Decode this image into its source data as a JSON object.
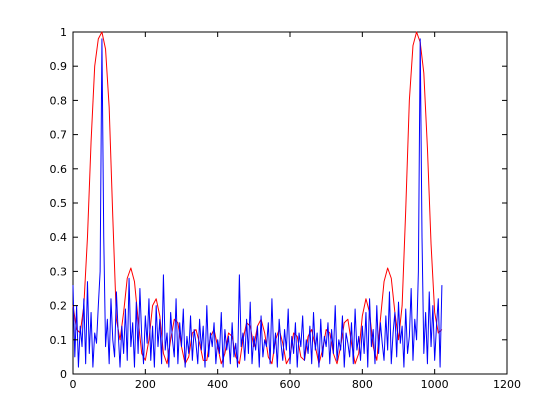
{
  "chart_data": {
    "type": "line",
    "title": "",
    "xlabel": "",
    "ylabel": "",
    "xlim": [
      0,
      1200
    ],
    "ylim": [
      0,
      1
    ],
    "grid": false,
    "x_ticks": [
      "0",
      "200",
      "400",
      "600",
      "800",
      "1000",
      "1200"
    ],
    "y_ticks": [
      "0",
      "0.1",
      "0.2",
      "0.3",
      "0.4",
      "0.5",
      "0.6",
      "0.7",
      "0.8",
      "0.9",
      "1"
    ],
    "series": [
      {
        "color": "#ff0000",
        "x": [
          0,
          10,
          20,
          30,
          40,
          50,
          60,
          70,
          80,
          90,
          100,
          110,
          120,
          130,
          140,
          150,
          160,
          170,
          180,
          190,
          200,
          210,
          220,
          230,
          240,
          250,
          260,
          270,
          280,
          290,
          300,
          310,
          320,
          330,
          340,
          350,
          360,
          370,
          380,
          390,
          400,
          410,
          420,
          430,
          440,
          450,
          460,
          470,
          480,
          490,
          500,
          510,
          520,
          530,
          540,
          550,
          560,
          570,
          580,
          590,
          600,
          610,
          620,
          630,
          640,
          650,
          660,
          670,
          680,
          690,
          700,
          710,
          720,
          730,
          740,
          750,
          760,
          770,
          780,
          790,
          800,
          810,
          820,
          830,
          840,
          850,
          860,
          870,
          880,
          890,
          900,
          910,
          920,
          930,
          940,
          950,
          960,
          970,
          980,
          990,
          1000,
          1010,
          1020
        ],
        "values": [
          0.2,
          0.13,
          0.12,
          0.2,
          0.4,
          0.68,
          0.9,
          0.98,
          1.0,
          0.95,
          0.78,
          0.46,
          0.16,
          0.1,
          0.18,
          0.28,
          0.31,
          0.27,
          0.16,
          0.06,
          0.04,
          0.1,
          0.2,
          0.22,
          0.17,
          0.06,
          0.03,
          0.1,
          0.16,
          0.15,
          0.08,
          0.03,
          0.05,
          0.12,
          0.13,
          0.09,
          0.04,
          0.04,
          0.11,
          0.13,
          0.08,
          0.03,
          0.06,
          0.12,
          0.11,
          0.05,
          0.03,
          0.1,
          0.15,
          0.14,
          0.08,
          0.14,
          0.16,
          0.12,
          0.05,
          0.03,
          0.1,
          0.13,
          0.09,
          0.03,
          0.05,
          0.12,
          0.11,
          0.05,
          0.04,
          0.11,
          0.13,
          0.08,
          0.03,
          0.07,
          0.13,
          0.12,
          0.06,
          0.03,
          0.08,
          0.15,
          0.16,
          0.09,
          0.03,
          0.06,
          0.17,
          0.22,
          0.18,
          0.08,
          0.04,
          0.16,
          0.27,
          0.31,
          0.28,
          0.18,
          0.1,
          0.2,
          0.48,
          0.8,
          0.96,
          1.0,
          0.97,
          0.88,
          0.66,
          0.38,
          0.18,
          0.12,
          0.13
        ]
      },
      {
        "color": "#0000ff",
        "x": [
          0,
          5,
          10,
          15,
          20,
          25,
          30,
          35,
          40,
          45,
          50,
          55,
          60,
          65,
          70,
          75,
          80,
          85,
          90,
          95,
          100,
          105,
          110,
          115,
          120,
          125,
          130,
          135,
          140,
          145,
          150,
          155,
          160,
          165,
          170,
          175,
          180,
          185,
          190,
          195,
          200,
          205,
          210,
          215,
          220,
          225,
          230,
          235,
          240,
          245,
          250,
          255,
          260,
          265,
          270,
          275,
          280,
          285,
          290,
          295,
          300,
          305,
          310,
          315,
          320,
          325,
          330,
          335,
          340,
          345,
          350,
          355,
          360,
          365,
          370,
          375,
          380,
          385,
          390,
          395,
          400,
          405,
          410,
          415,
          420,
          425,
          430,
          435,
          440,
          445,
          450,
          455,
          460,
          465,
          470,
          475,
          480,
          485,
          490,
          495,
          500,
          505,
          510,
          515,
          520,
          525,
          530,
          535,
          540,
          545,
          550,
          555,
          560,
          565,
          570,
          575,
          580,
          585,
          590,
          595,
          600,
          605,
          610,
          615,
          620,
          625,
          630,
          635,
          640,
          645,
          650,
          655,
          660,
          665,
          670,
          675,
          680,
          685,
          690,
          695,
          700,
          705,
          710,
          715,
          720,
          725,
          730,
          735,
          740,
          745,
          750,
          755,
          760,
          765,
          770,
          775,
          780,
          785,
          790,
          795,
          800,
          805,
          810,
          815,
          820,
          825,
          830,
          835,
          840,
          845,
          850,
          855,
          860,
          865,
          870,
          875,
          880,
          885,
          890,
          895,
          900,
          905,
          910,
          915,
          920,
          925,
          930,
          935,
          940,
          945,
          950,
          955,
          960,
          965,
          970,
          975,
          980,
          985,
          990,
          995,
          1000,
          1005,
          1010,
          1015,
          1020
        ],
        "values": [
          0.26,
          0.05,
          0.2,
          0.02,
          0.14,
          0.08,
          0.22,
          0.03,
          0.27,
          0.06,
          0.18,
          0.02,
          0.12,
          0.09,
          0.2,
          0.3,
          0.98,
          0.4,
          0.08,
          0.16,
          0.03,
          0.22,
          0.1,
          0.05,
          0.24,
          0.12,
          0.02,
          0.14,
          0.06,
          0.19,
          0.04,
          0.28,
          0.08,
          0.15,
          0.02,
          0.21,
          0.06,
          0.25,
          0.11,
          0.03,
          0.17,
          0.09,
          0.22,
          0.04,
          0.14,
          0.02,
          0.2,
          0.08,
          0.16,
          0.03,
          0.29,
          0.07,
          0.12,
          0.02,
          0.18,
          0.1,
          0.05,
          0.22,
          0.03,
          0.15,
          0.08,
          0.19,
          0.02,
          0.11,
          0.06,
          0.17,
          0.04,
          0.13,
          0.09,
          0.03,
          0.16,
          0.07,
          0.14,
          0.02,
          0.2,
          0.05,
          0.12,
          0.08,
          0.15,
          0.03,
          0.1,
          0.06,
          0.18,
          0.02,
          0.13,
          0.07,
          0.11,
          0.03,
          0.15,
          0.05,
          0.09,
          0.02,
          0.29,
          0.08,
          0.12,
          0.04,
          0.16,
          0.06,
          0.21,
          0.03,
          0.11,
          0.07,
          0.14,
          0.02,
          0.17,
          0.05,
          0.1,
          0.08,
          0.15,
          0.03,
          0.22,
          0.06,
          0.12,
          0.02,
          0.16,
          0.09,
          0.04,
          0.13,
          0.07,
          0.19,
          0.03,
          0.11,
          0.06,
          0.15,
          0.02,
          0.12,
          0.08,
          0.17,
          0.04,
          0.1,
          0.06,
          0.14,
          0.03,
          0.18,
          0.07,
          0.12,
          0.02,
          0.16,
          0.05,
          0.11,
          0.08,
          0.15,
          0.03,
          0.13,
          0.06,
          0.2,
          0.04,
          0.1,
          0.07,
          0.17,
          0.02,
          0.12,
          0.09,
          0.05,
          0.15,
          0.03,
          0.19,
          0.07,
          0.11,
          0.04,
          0.14,
          0.06,
          0.18,
          0.02,
          0.22,
          0.08,
          0.13,
          0.03,
          0.2,
          0.06,
          0.15,
          0.09,
          0.04,
          0.17,
          0.07,
          0.24,
          0.03,
          0.12,
          0.18,
          0.05,
          0.21,
          0.09,
          0.14,
          0.02,
          0.19,
          0.06,
          0.11,
          0.25,
          0.04,
          0.16,
          0.1,
          0.3,
          0.98,
          0.4,
          0.06,
          0.18,
          0.03,
          0.24,
          0.08,
          0.2,
          0.04,
          0.14,
          0.22,
          0.02,
          0.26
        ]
      }
    ]
  }
}
